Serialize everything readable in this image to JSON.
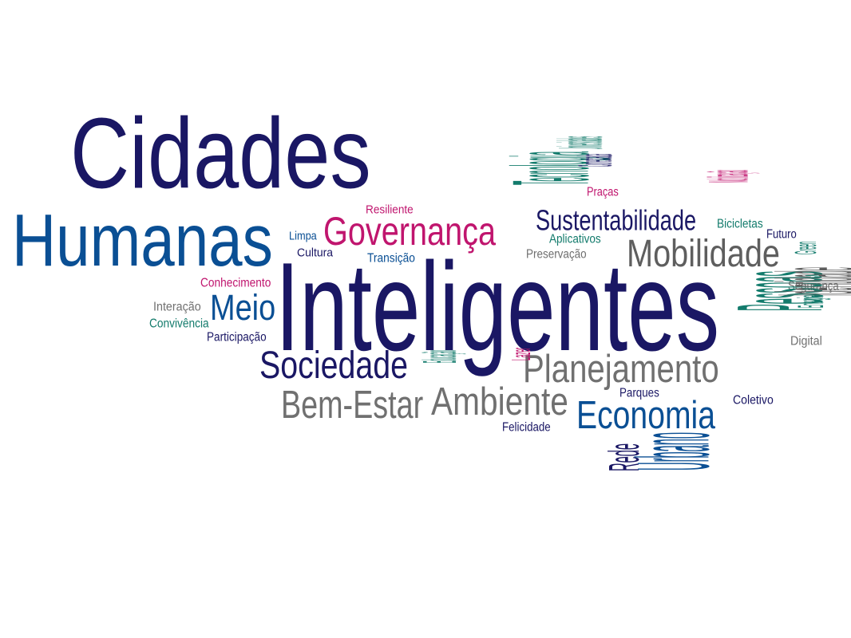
{
  "colors": {
    "dark_blue": "#1a1764",
    "indigo": "#2a1d78",
    "blue": "#0a4f94",
    "magenta": "#c0156e",
    "teal": "#137b6c",
    "gray": "#707070",
    "dark_gray": "#5e5e5e"
  },
  "words": {
    "cidades": "Cidades",
    "humanas": "Humanas",
    "inteligentes": "Inteligentes",
    "governanca": "Governança",
    "resiliente": "Resiliente",
    "limpa": "Limpa",
    "cultura": "Cultura",
    "transicao": "Transição",
    "conhecimento": "Conhecimento",
    "interacao": "Interação",
    "convivencia": "Convivência",
    "meio": "Meio",
    "participacao": "Participação",
    "sociedade": "Sociedade",
    "educacao": "Educação",
    "bem_estar": "Bem-Estar",
    "ambiente": "Ambiente",
    "felicidade": "Felicidade",
    "lazer": "Lazer",
    "planejamento": "Planejamento",
    "parques": "Parques",
    "economia": "Economia",
    "rede": "Rede",
    "urbano": "Urbano",
    "tecnologia": "Tecnologia",
    "universidades": "Universidades",
    "conectada": "Conectada",
    "pracas": "Praças",
    "sustentabilidade": "Sustentabilidade",
    "aplicativos": "Aplicativos",
    "preservacao": "Preservação",
    "mobilidade": "Mobilidade",
    "mobilizacao": "Mobilização",
    "bicicletas": "Bicicletas",
    "futuro": "Futuro",
    "green": "Green",
    "seguranca": "Segurança",
    "pessoas": "Pessoas",
    "identidade": "Identidade",
    "energia": "Energia",
    "digital": "Digital",
    "coletivo": "Coletivo"
  }
}
